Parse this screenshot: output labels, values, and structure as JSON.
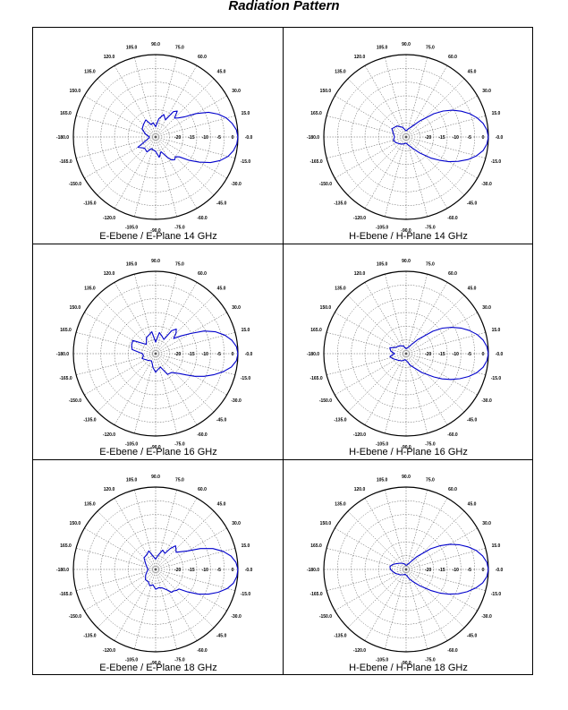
{
  "page": {
    "title_partial": "g",
    "title": "Radiation Pattern"
  },
  "chart_data": [
    {
      "type": "polar",
      "caption": "E-Ebene / E-Plane 14 GHz",
      "angle_ticks": [
        "90.0",
        "75.0",
        "60.0",
        "45.0",
        "30.0",
        "15.0",
        "-0.0",
        "-15.0",
        "-30.0",
        "-45.0",
        "-60.0",
        "-75.0",
        "-90.0",
        "-105.0",
        "-120.0",
        "-135.0",
        "-150.0",
        "-165.0",
        "-180.0",
        "165.0",
        "150.0",
        "135.0",
        "120.0",
        "105.0"
      ],
      "radial_ticks": [
        "-20",
        "-15",
        "-10",
        "-5",
        "0"
      ],
      "r_range_db": [
        -20,
        0
      ],
      "grid": true,
      "series": [
        {
          "color": "#0000cc",
          "angle_deg": [
            0,
            5,
            10,
            15,
            20,
            25,
            30,
            35,
            40,
            45,
            50,
            55,
            60,
            70,
            80,
            90,
            100,
            110,
            120,
            135,
            150,
            165,
            180,
            195,
            210,
            225,
            240,
            250,
            260,
            270,
            280,
            290,
            300,
            305,
            310,
            315,
            320,
            325,
            330,
            335,
            340,
            345,
            350,
            355
          ],
          "gain_db": [
            0,
            -0.3,
            -1.1,
            -2.2,
            -3.8,
            -5.8,
            -8.6,
            -11.5,
            -12.8,
            -13.5,
            -11.8,
            -12.5,
            -15.2,
            -14.2,
            -15.5,
            -17.5,
            -16.5,
            -16.8,
            -15.2,
            -15.8,
            -16.2,
            -17.5,
            -18.5,
            -18.0,
            -15.0,
            -16.2,
            -15.8,
            -17.0,
            -16.8,
            -16.5,
            -15.0,
            -16.2,
            -14.3,
            -13.2,
            -12.8,
            -13.2,
            -12.5,
            -10.2,
            -7.8,
            -5.3,
            -3.3,
            -1.8,
            -0.8,
            -0.2
          ]
        }
      ]
    },
    {
      "type": "polar",
      "caption": "H-Ebene / H-Plane 14 GHz",
      "angle_ticks": [
        "90.0",
        "75.0",
        "60.0",
        "45.0",
        "30.0",
        "15.0",
        "-0.0",
        "-15.0",
        "-30.0",
        "-45.0",
        "-60.0",
        "-75.0",
        "-90.0",
        "-105.0",
        "-120.0",
        "-135.0",
        "-150.0",
        "-165.0",
        "-180.0",
        "165.0",
        "150.0",
        "135.0",
        "120.0",
        "105.0"
      ],
      "radial_ticks": [
        "-20",
        "-15",
        "-10",
        "-5",
        "0"
      ],
      "r_range_db": [
        -20,
        0
      ],
      "grid": true,
      "series": [
        {
          "color": "#0000cc",
          "angle_deg": [
            0,
            5,
            10,
            15,
            20,
            25,
            30,
            35,
            40,
            50,
            60,
            75,
            90,
            110,
            130,
            150,
            165,
            180,
            195,
            210,
            230,
            250,
            270,
            285,
            300,
            310,
            320,
            325,
            330,
            335,
            340,
            345,
            350,
            355
          ],
          "gain_db": [
            0,
            -0.3,
            -1.0,
            -2.1,
            -3.5,
            -5.2,
            -7.0,
            -9.0,
            -11.2,
            -15.0,
            -17.0,
            -18.0,
            -18.5,
            -17.5,
            -16.5,
            -16.0,
            -16.8,
            -17.2,
            -16.8,
            -17.2,
            -17.8,
            -18.2,
            -18.5,
            -18.0,
            -16.8,
            -15.0,
            -12.0,
            -10.2,
            -8.0,
            -6.0,
            -4.0,
            -2.3,
            -1.0,
            -0.3
          ]
        }
      ]
    },
    {
      "type": "polar",
      "caption": "E-Ebene / E-Plane 16 GHz",
      "angle_ticks": [
        "90.0",
        "75.0",
        "60.0",
        "45.0",
        "30.0",
        "15.0",
        "-0.0",
        "-15.0",
        "-30.0",
        "-45.0",
        "-60.0",
        "-75.0",
        "-90.0",
        "-105.0",
        "-120.0",
        "-135.0",
        "-150.0",
        "-165.0",
        "-180.0",
        "165.0",
        "150.0",
        "135.0",
        "120.0",
        "105.0"
      ],
      "radial_ticks": [
        "-20",
        "-15",
        "-10",
        "-5",
        "0"
      ],
      "r_range_db": [
        -20,
        0
      ],
      "grid": true,
      "series": [
        {
          "color": "#0000cc",
          "angle_deg": [
            0,
            5,
            10,
            15,
            20,
            25,
            30,
            35,
            40,
            45,
            50,
            55,
            60,
            70,
            80,
            90,
            100,
            110,
            120,
            135,
            150,
            160,
            170,
            180,
            190,
            200,
            220,
            240,
            260,
            270,
            280,
            290,
            300,
            310,
            320,
            325,
            330,
            335,
            340,
            345,
            350,
            355
          ],
          "gain_db": [
            0,
            -0.3,
            -1.2,
            -2.6,
            -4.5,
            -7.0,
            -10.2,
            -12.5,
            -14.3,
            -13.0,
            -12.2,
            -13.2,
            -16.0,
            -15.5,
            -14.8,
            -17.2,
            -14.6,
            -15.2,
            -15.5,
            -16.8,
            -13.6,
            -13.8,
            -14.2,
            -16.8,
            -17.0,
            -16.5,
            -17.5,
            -18.0,
            -16.5,
            -15.5,
            -16.2,
            -16.5,
            -14.2,
            -14.0,
            -12.5,
            -11.0,
            -9.0,
            -7.0,
            -5.0,
            -3.0,
            -1.3,
            -0.3
          ]
        }
      ]
    },
    {
      "type": "polar",
      "caption": "H-Ebene / H-Plane 16 GHz",
      "angle_ticks": [
        "90.0",
        "75.0",
        "60.0",
        "45.0",
        "30.0",
        "15.0",
        "-0.0",
        "-15.0",
        "-30.0",
        "-45.0",
        "-60.0",
        "-75.0",
        "-90.0",
        "-105.0",
        "-120.0",
        "-135.0",
        "-150.0",
        "-165.0",
        "-180.0",
        "165.0",
        "150.0",
        "135.0",
        "120.0",
        "105.0"
      ],
      "radial_ticks": [
        "-20",
        "-15",
        "-10",
        "-5",
        "0"
      ],
      "r_range_db": [
        -20,
        0
      ],
      "grid": true,
      "series": [
        {
          "color": "#0000cc",
          "angle_deg": [
            0,
            5,
            10,
            15,
            20,
            25,
            30,
            35,
            40,
            50,
            60,
            75,
            90,
            110,
            130,
            150,
            160,
            170,
            180,
            190,
            200,
            220,
            240,
            260,
            275,
            290,
            300,
            310,
            320,
            325,
            330,
            335,
            340,
            345,
            350,
            355
          ],
          "gain_db": [
            0,
            -0.3,
            -1.0,
            -2.1,
            -3.6,
            -5.3,
            -7.2,
            -9.2,
            -11.5,
            -15.5,
            -17.5,
            -18.5,
            -18.8,
            -18.0,
            -17.5,
            -17.0,
            -15.8,
            -16.2,
            -17.2,
            -16.0,
            -16.5,
            -17.5,
            -18.0,
            -18.5,
            -18.2,
            -17.0,
            -16.0,
            -14.0,
            -11.2,
            -9.3,
            -7.5,
            -5.6,
            -3.8,
            -2.2,
            -1.0,
            -0.3
          ]
        }
      ]
    },
    {
      "type": "polar",
      "caption": "E-Ebene / E-Plane 18 GHz",
      "angle_ticks": [
        "90.0",
        "75.0",
        "60.0",
        "45.0",
        "30.0",
        "15.0",
        "-0.0",
        "-15.0",
        "-30.0",
        "-45.0",
        "-60.0",
        "-75.0",
        "-90.0",
        "-105.0",
        "-120.0",
        "-135.0",
        "-150.0",
        "-165.0",
        "-180.0",
        "165.0",
        "150.0",
        "135.0",
        "120.0",
        "105.0"
      ],
      "radial_ticks": [
        "-20",
        "-15",
        "-10",
        "-5",
        "0"
      ],
      "r_range_db": [
        -20,
        0
      ],
      "grid": true,
      "series": [
        {
          "color": "#0000cc",
          "angle_deg": [
            0,
            5,
            10,
            15,
            20,
            25,
            30,
            35,
            40,
            45,
            50,
            55,
            60,
            70,
            80,
            90,
            100,
            110,
            120,
            135,
            150,
            165,
            180,
            195,
            210,
            225,
            240,
            250,
            260,
            270,
            280,
            290,
            300,
            305,
            310,
            315,
            320,
            325,
            330,
            335,
            340,
            345,
            350,
            355
          ],
          "gain_db": [
            0,
            -0.4,
            -1.4,
            -3.0,
            -5.2,
            -8.0,
            -11.0,
            -12.5,
            -13.5,
            -13.0,
            -12.5,
            -13.8,
            -15.5,
            -15.0,
            -16.5,
            -17.5,
            -16.8,
            -15.2,
            -15.8,
            -16.0,
            -17.2,
            -17.8,
            -18.2,
            -17.8,
            -17.2,
            -16.5,
            -16.5,
            -15.8,
            -16.2,
            -15.2,
            -15.5,
            -15.2,
            -14.2,
            -13.2,
            -13.2,
            -12.8,
            -12.6,
            -10.5,
            -8.0,
            -5.8,
            -3.8,
            -2.0,
            -0.8,
            -0.2
          ]
        }
      ]
    },
    {
      "type": "polar",
      "caption": "H-Ebene / H-Plane 18 GHz",
      "angle_ticks": [
        "90.0",
        "75.0",
        "60.0",
        "45.0",
        "30.0",
        "15.0",
        "-0.0",
        "-15.0",
        "-30.0",
        "-45.0",
        "-60.0",
        "-75.0",
        "-90.0",
        "-105.0",
        "-120.0",
        "-135.0",
        "-150.0",
        "-165.0",
        "-180.0",
        "165.0",
        "150.0",
        "135.0",
        "120.0",
        "105.0"
      ],
      "radial_ticks": [
        "-20",
        "-15",
        "-10",
        "-5",
        "0"
      ],
      "r_range_db": [
        -20,
        0
      ],
      "grid": true,
      "series": [
        {
          "color": "#0000cc",
          "angle_deg": [
            0,
            5,
            10,
            15,
            20,
            25,
            30,
            35,
            40,
            50,
            60,
            75,
            90,
            110,
            130,
            150,
            160,
            170,
            180,
            190,
            200,
            220,
            240,
            260,
            275,
            290,
            300,
            310,
            320,
            325,
            330,
            335,
            340,
            345,
            350,
            355
          ],
          "gain_db": [
            0,
            -0.3,
            -1.1,
            -2.3,
            -4.0,
            -5.8,
            -7.8,
            -10.0,
            -12.2,
            -16.0,
            -18.0,
            -18.8,
            -19.0,
            -18.5,
            -18.0,
            -17.2,
            -16.5,
            -16.0,
            -16.2,
            -16.8,
            -17.2,
            -18.0,
            -18.5,
            -18.8,
            -18.5,
            -17.5,
            -16.5,
            -14.8,
            -12.0,
            -10.0,
            -8.0,
            -6.0,
            -4.2,
            -2.5,
            -1.1,
            -0.3
          ]
        }
      ]
    }
  ]
}
